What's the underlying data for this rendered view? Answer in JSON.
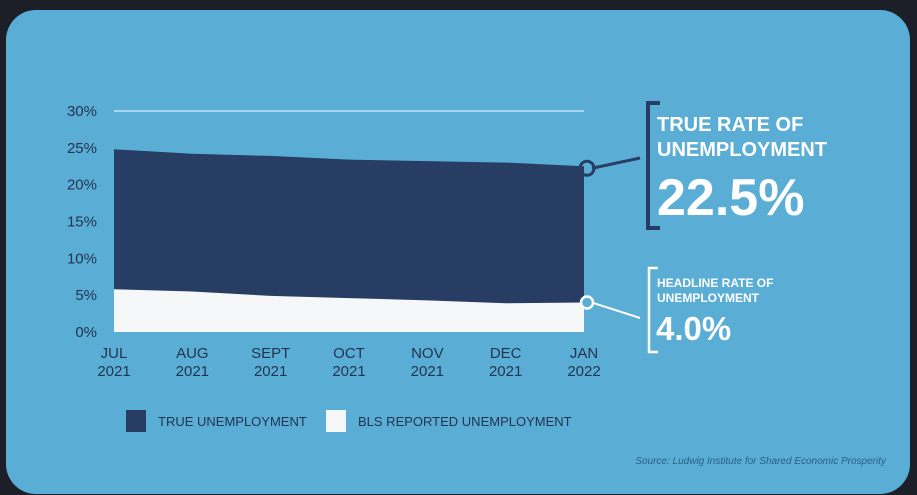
{
  "chart_data": {
    "type": "area",
    "categories": [
      "JUL\n2021",
      "AUG\n2021",
      "SEPT\n2021",
      "OCT\n2021",
      "NOV\n2021",
      "DEC\n2021",
      "JAN\n2022"
    ],
    "ylim": [
      0,
      30
    ],
    "yticks": [
      "0%",
      "5%",
      "10%",
      "15%",
      "20%",
      "25%",
      "30%"
    ],
    "series": [
      {
        "name": "TRUE UNEMPLOYMENT",
        "values": [
          24.8,
          24.2,
          23.9,
          23.4,
          23.2,
          23.0,
          22.5
        ],
        "color": "#283d63"
      },
      {
        "name": "BLS REPORTED UNEMPLOYMENT",
        "values": [
          5.8,
          5.5,
          4.9,
          4.6,
          4.3,
          3.9,
          4.0
        ],
        "color": "#f6f7f8"
      }
    ],
    "grid": false
  },
  "callouts": {
    "true_rate": {
      "title": "TRUE RATE OF UNEMPLOYMENT",
      "value": "22.5%"
    },
    "headline_rate": {
      "title": "HEADLINE RATE OF UNEMPLOYMENT",
      "value": "4.0%"
    }
  },
  "legend": [
    {
      "label": "TRUE UNEMPLOYMENT",
      "color": "#283d63"
    },
    {
      "label": "BLS REPORTED UNEMPLOYMENT",
      "color": "#f6f7f8"
    }
  ],
  "source": "Source: Ludwig Institute for Shared Economic Prosperity",
  "colors": {
    "background": "#5aaed6",
    "true_area": "#283d63",
    "bls_area": "#f6f7f8",
    "text": "#23334f"
  }
}
